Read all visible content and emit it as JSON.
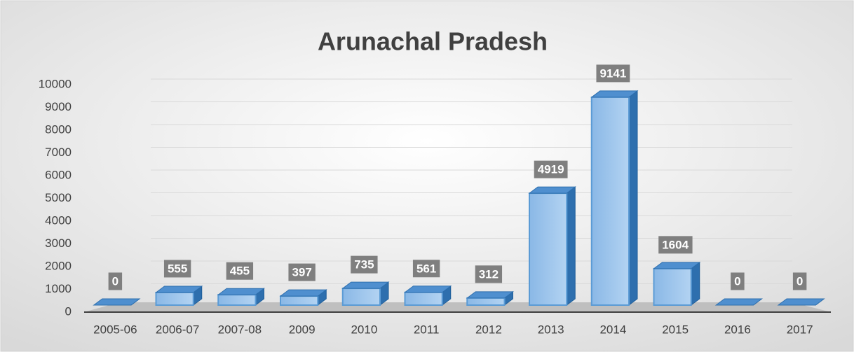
{
  "chart_data": {
    "type": "bar",
    "title": "Arunachal Pradesh",
    "categories": [
      "2005-06",
      "2006-07",
      "2007-08",
      "2009",
      "2010",
      "2011",
      "2012",
      "2013",
      "2014",
      "2015",
      "2016",
      "2017"
    ],
    "values": [
      0,
      555,
      455,
      397,
      735,
      561,
      312,
      4919,
      9141,
      1604,
      0,
      0
    ],
    "color": "#5b9bd5",
    "ylim": [
      0,
      10000
    ],
    "yticks": [
      0,
      1000,
      2000,
      3000,
      4000,
      5000,
      6000,
      7000,
      8000,
      9000,
      10000
    ],
    "grid": true
  }
}
